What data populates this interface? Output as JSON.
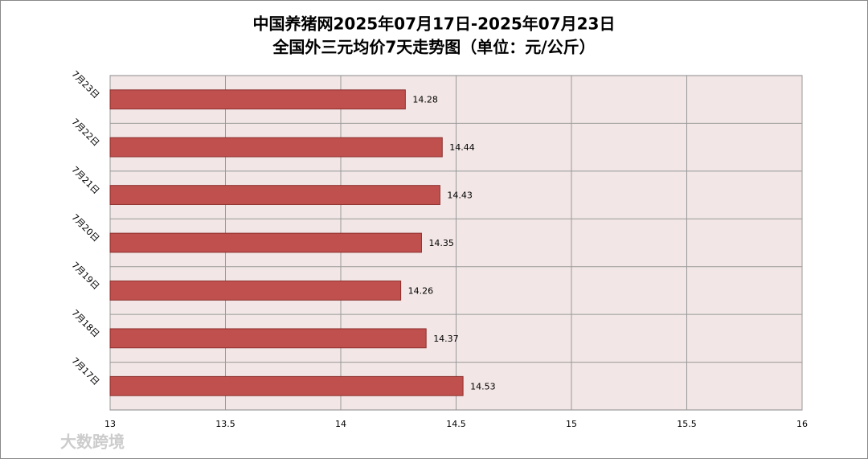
{
  "chart_data": {
    "type": "bar",
    "orientation": "horizontal",
    "title": "中国养猪网2025年07月17日-2025年07月23日",
    "subtitle": "全国外三元均价7天走势图（单位：元/公斤）",
    "categories": [
      "7月23日",
      "7月22日",
      "7月21日",
      "7月20日",
      "7月19日",
      "7月18日",
      "7月17日"
    ],
    "values": [
      14.28,
      14.44,
      14.43,
      14.35,
      14.26,
      14.37,
      14.53
    ],
    "color": "#c0504d",
    "xlim": [
      13,
      16
    ],
    "xticks": [
      13,
      13.5,
      14,
      14.5,
      15,
      15.5,
      16
    ],
    "grid": true
  },
  "watermark": "大数跨境"
}
